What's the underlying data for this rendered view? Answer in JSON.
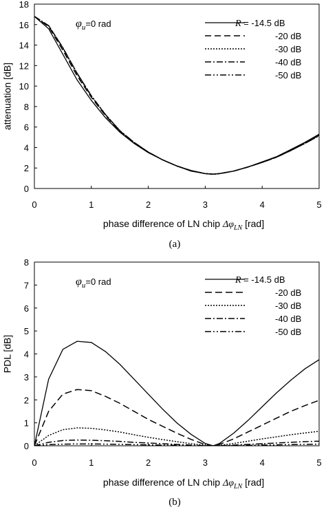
{
  "chart_data": [
    {
      "type": "line",
      "caption": "(a)",
      "xlabel": {
        "prefix": "phase difference of LN chip ",
        "symbol": "Δφ",
        "subscript": "LN",
        "suffix": " [rad]"
      },
      "ylabel": "attenuation [dB]",
      "xlim": [
        0,
        5
      ],
      "ylim": [
        0,
        18
      ],
      "xticks": [
        "0",
        "1",
        "2",
        "3",
        "4",
        "5"
      ],
      "yticks": [
        "0",
        "2",
        "4",
        "6",
        "8",
        "10",
        "12",
        "14",
        "16",
        "18"
      ],
      "annotation": {
        "symbol": "φ",
        "subscript": "u",
        "text": "=0 rad"
      },
      "legend_placement": "top-right",
      "x": [
        0,
        0.25,
        0.5,
        0.75,
        1,
        1.25,
        1.5,
        1.75,
        2,
        2.25,
        2.5,
        2.75,
        3,
        3.14,
        3.25,
        3.5,
        3.75,
        4,
        4.25,
        4.5,
        4.75,
        5
      ],
      "series": [
        {
          "name": "-14.5 dB",
          "dash": "",
          "values": [
            16.8,
            15.6,
            13.1,
            10.6,
            8.6,
            6.9,
            5.5,
            4.4,
            3.5,
            2.8,
            2.2,
            1.7,
            1.45,
            1.4,
            1.45,
            1.7,
            2.1,
            2.6,
            3.1,
            3.8,
            4.5,
            5.3
          ]
        },
        {
          "name": "-20 dB",
          "dash": "9,5",
          "values": [
            16.8,
            15.8,
            13.5,
            11.0,
            8.9,
            7.1,
            5.6,
            4.5,
            3.55,
            2.8,
            2.2,
            1.75,
            1.45,
            1.4,
            1.45,
            1.7,
            2.1,
            2.55,
            3.1,
            3.75,
            4.45,
            5.2
          ]
        },
        {
          "name": "-30 dB",
          "dash": "2,2",
          "values": [
            16.8,
            15.9,
            13.7,
            11.2,
            9.0,
            7.2,
            5.65,
            4.5,
            3.55,
            2.8,
            2.2,
            1.75,
            1.45,
            1.4,
            1.45,
            1.7,
            2.1,
            2.55,
            3.05,
            3.7,
            4.4,
            5.2
          ]
        },
        {
          "name": "-40 dB",
          "dash": "9,3,2,3",
          "values": [
            16.8,
            15.9,
            13.75,
            11.25,
            9.05,
            7.2,
            5.65,
            4.5,
            3.55,
            2.8,
            2.2,
            1.75,
            1.45,
            1.4,
            1.45,
            1.7,
            2.1,
            2.55,
            3.05,
            3.7,
            4.4,
            5.15
          ]
        },
        {
          "name": "-50 dB",
          "dash": "9,3,2,3,2,3",
          "values": [
            16.8,
            15.9,
            13.75,
            11.25,
            9.05,
            7.2,
            5.65,
            4.5,
            3.55,
            2.8,
            2.2,
            1.75,
            1.45,
            1.4,
            1.45,
            1.7,
            2.1,
            2.55,
            3.05,
            3.7,
            4.4,
            5.15
          ]
        }
      ]
    },
    {
      "type": "line",
      "caption": "(b)",
      "xlabel": {
        "prefix": "phase difference of LN chip ",
        "symbol": "Δφ",
        "subscript": "LN",
        "suffix": " [rad]"
      },
      "ylabel": "PDL [dB]",
      "xlim": [
        0,
        5
      ],
      "ylim": [
        0,
        8
      ],
      "xticks": [
        "0",
        "1",
        "2",
        "3",
        "4",
        "5"
      ],
      "yticks": [
        "0",
        "1",
        "2",
        "3",
        "4",
        "5",
        "6",
        "7",
        "8"
      ],
      "annotation": {
        "symbol": "φ",
        "subscript": "u",
        "text": "=0 rad"
      },
      "legend_placement": "top-right",
      "x": [
        0,
        0.25,
        0.5,
        0.75,
        1,
        1.25,
        1.5,
        1.75,
        2,
        2.25,
        2.5,
        2.75,
        3,
        3.14,
        3.25,
        3.5,
        3.75,
        4,
        4.25,
        4.5,
        4.75,
        5
      ],
      "series": [
        {
          "name": "-14.5 dB",
          "dash": "",
          "values": [
            0.0,
            2.9,
            4.2,
            4.55,
            4.5,
            4.1,
            3.55,
            2.9,
            2.25,
            1.6,
            1.0,
            0.5,
            0.1,
            0.0,
            0.1,
            0.55,
            1.1,
            1.7,
            2.3,
            2.85,
            3.35,
            3.75
          ]
        },
        {
          "name": "-20 dB",
          "dash": "10,5",
          "values": [
            0.0,
            1.5,
            2.25,
            2.45,
            2.4,
            2.15,
            1.85,
            1.5,
            1.15,
            0.85,
            0.55,
            0.28,
            0.05,
            0.0,
            0.06,
            0.3,
            0.6,
            0.9,
            1.2,
            1.5,
            1.75,
            1.98
          ]
        },
        {
          "name": "-30 dB",
          "dash": "2,2",
          "values": [
            0.0,
            0.45,
            0.7,
            0.78,
            0.76,
            0.69,
            0.6,
            0.48,
            0.37,
            0.27,
            0.18,
            0.09,
            0.02,
            0.0,
            0.02,
            0.1,
            0.2,
            0.3,
            0.39,
            0.48,
            0.56,
            0.63
          ]
        },
        {
          "name": "-40 dB",
          "dash": "9,3,2,3",
          "values": [
            0.0,
            0.15,
            0.23,
            0.25,
            0.24,
            0.22,
            0.19,
            0.15,
            0.12,
            0.09,
            0.06,
            0.03,
            0.0,
            0.0,
            0.0,
            0.03,
            0.06,
            0.09,
            0.12,
            0.15,
            0.18,
            0.2
          ]
        },
        {
          "name": "-50 dB",
          "dash": "9,3,2,3,2,3",
          "values": [
            0.0,
            0.05,
            0.07,
            0.08,
            0.08,
            0.07,
            0.06,
            0.05,
            0.04,
            0.03,
            0.02,
            0.01,
            0.0,
            0.0,
            0.0,
            0.01,
            0.02,
            0.03,
            0.04,
            0.05,
            0.06,
            0.07
          ]
        }
      ]
    }
  ]
}
